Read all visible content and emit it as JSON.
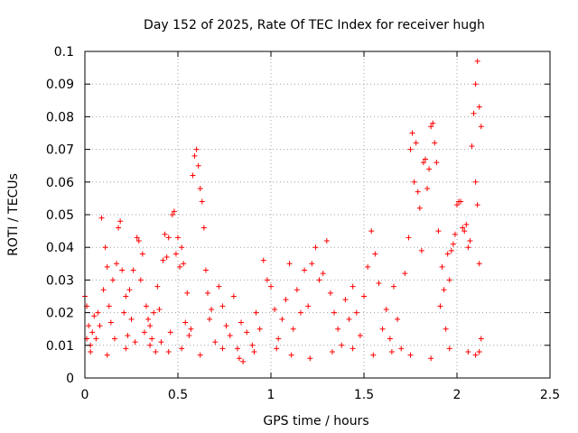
{
  "chart_data": {
    "type": "scatter",
    "title": "Day 152 of 2025, Rate Of TEC Index for receiver hugh",
    "xlabel": "GPS time / hours",
    "ylabel": "ROTI / TECUs",
    "xlim": [
      0,
      2.5
    ],
    "ylim": [
      0,
      0.1
    ],
    "x_ticks": [
      0,
      0.5,
      1,
      1.5,
      2,
      2.5
    ],
    "x_tick_labels": [
      "0",
      "0.5",
      "1",
      "1.5",
      "2",
      "2.5"
    ],
    "y_ticks": [
      0,
      0.01,
      0.02,
      0.03,
      0.04,
      0.05,
      0.06,
      0.07,
      0.08,
      0.09,
      0.1
    ],
    "y_tick_labels": [
      "0",
      "0.01",
      "0.02",
      "0.03",
      "0.04",
      "0.05",
      "0.06",
      "0.07",
      "0.08",
      "0.09",
      "0.1"
    ],
    "grid": true,
    "marker": "+",
    "color": "#ff0000",
    "series": [
      {
        "points": [
          [
            0.0,
            0.025
          ],
          [
            0.01,
            0.022
          ],
          [
            0.01,
            0.012
          ],
          [
            0.02,
            0.016
          ],
          [
            0.03,
            0.01
          ],
          [
            0.04,
            0.014
          ],
          [
            0.05,
            0.019
          ],
          [
            0.06,
            0.012
          ],
          [
            0.07,
            0.02
          ],
          [
            0.08,
            0.016
          ],
          [
            0.09,
            0.049
          ],
          [
            0.1,
            0.027
          ],
          [
            0.11,
            0.04
          ],
          [
            0.12,
            0.034
          ],
          [
            0.13,
            0.022
          ],
          [
            0.14,
            0.017
          ],
          [
            0.15,
            0.03
          ],
          [
            0.16,
            0.012
          ],
          [
            0.17,
            0.035
          ],
          [
            0.18,
            0.046
          ],
          [
            0.19,
            0.048
          ],
          [
            0.2,
            0.033
          ],
          [
            0.21,
            0.02
          ],
          [
            0.22,
            0.025
          ],
          [
            0.23,
            0.013
          ],
          [
            0.24,
            0.027
          ],
          [
            0.25,
            0.018
          ],
          [
            0.26,
            0.033
          ],
          [
            0.27,
            0.011
          ],
          [
            0.28,
            0.043
          ],
          [
            0.29,
            0.042
          ],
          [
            0.3,
            0.03
          ],
          [
            0.31,
            0.038
          ],
          [
            0.32,
            0.014
          ],
          [
            0.33,
            0.022
          ],
          [
            0.34,
            0.018
          ],
          [
            0.35,
            0.016
          ],
          [
            0.36,
            0.012
          ],
          [
            0.37,
            0.02
          ],
          [
            0.38,
            0.008
          ],
          [
            0.39,
            0.028
          ],
          [
            0.4,
            0.021
          ],
          [
            0.41,
            0.011
          ],
          [
            0.42,
            0.036
          ],
          [
            0.43,
            0.044
          ],
          [
            0.44,
            0.037
          ],
          [
            0.45,
            0.043
          ],
          [
            0.46,
            0.014
          ],
          [
            0.47,
            0.05
          ],
          [
            0.48,
            0.051
          ],
          [
            0.49,
            0.038
          ],
          [
            0.5,
            0.043
          ],
          [
            0.51,
            0.034
          ],
          [
            0.52,
            0.04
          ],
          [
            0.53,
            0.035
          ],
          [
            0.54,
            0.017
          ],
          [
            0.55,
            0.026
          ],
          [
            0.56,
            0.013
          ],
          [
            0.57,
            0.015
          ],
          [
            0.58,
            0.062
          ],
          [
            0.59,
            0.068
          ],
          [
            0.6,
            0.07
          ],
          [
            0.61,
            0.065
          ],
          [
            0.62,
            0.058
          ],
          [
            0.63,
            0.054
          ],
          [
            0.64,
            0.046
          ],
          [
            0.65,
            0.033
          ],
          [
            0.66,
            0.026
          ],
          [
            0.67,
            0.018
          ],
          [
            0.68,
            0.021
          ],
          [
            0.7,
            0.011
          ],
          [
            0.72,
            0.028
          ],
          [
            0.74,
            0.022
          ],
          [
            0.76,
            0.016
          ],
          [
            0.78,
            0.013
          ],
          [
            0.8,
            0.025
          ],
          [
            0.82,
            0.009
          ],
          [
            0.84,
            0.017
          ],
          [
            0.85,
            0.005
          ],
          [
            0.87,
            0.014
          ],
          [
            0.9,
            0.01
          ],
          [
            0.92,
            0.02
          ],
          [
            0.94,
            0.015
          ],
          [
            0.96,
            0.036
          ],
          [
            0.98,
            0.03
          ],
          [
            1.0,
            0.028
          ],
          [
            1.02,
            0.021
          ],
          [
            1.04,
            0.012
          ],
          [
            1.06,
            0.018
          ],
          [
            1.08,
            0.024
          ],
          [
            1.1,
            0.035
          ],
          [
            1.12,
            0.015
          ],
          [
            1.14,
            0.027
          ],
          [
            1.16,
            0.02
          ],
          [
            1.18,
            0.033
          ],
          [
            1.2,
            0.022
          ],
          [
            1.22,
            0.035
          ],
          [
            1.24,
            0.04
          ],
          [
            1.26,
            0.03
          ],
          [
            1.28,
            0.032
          ],
          [
            1.3,
            0.042
          ],
          [
            1.32,
            0.026
          ],
          [
            1.34,
            0.02
          ],
          [
            1.36,
            0.015
          ],
          [
            1.38,
            0.01
          ],
          [
            1.4,
            0.024
          ],
          [
            1.42,
            0.018
          ],
          [
            1.44,
            0.028
          ],
          [
            1.46,
            0.02
          ],
          [
            1.48,
            0.013
          ],
          [
            1.5,
            0.025
          ],
          [
            1.52,
            0.034
          ],
          [
            1.54,
            0.045
          ],
          [
            1.56,
            0.038
          ],
          [
            1.58,
            0.029
          ],
          [
            1.6,
            0.015
          ],
          [
            1.62,
            0.021
          ],
          [
            1.64,
            0.012
          ],
          [
            1.66,
            0.028
          ],
          [
            1.68,
            0.018
          ],
          [
            1.7,
            0.009
          ],
          [
            1.72,
            0.032
          ],
          [
            1.74,
            0.043
          ],
          [
            1.75,
            0.07
          ],
          [
            1.76,
            0.075
          ],
          [
            1.77,
            0.06
          ],
          [
            1.78,
            0.072
          ],
          [
            1.79,
            0.057
          ],
          [
            1.8,
            0.052
          ],
          [
            1.81,
            0.039
          ],
          [
            1.82,
            0.066
          ],
          [
            1.83,
            0.067
          ],
          [
            1.84,
            0.058
          ],
          [
            1.85,
            0.064
          ],
          [
            1.86,
            0.077
          ],
          [
            1.87,
            0.078
          ],
          [
            1.88,
            0.072
          ],
          [
            1.89,
            0.066
          ],
          [
            1.9,
            0.045
          ],
          [
            1.91,
            0.022
          ],
          [
            1.92,
            0.034
          ],
          [
            1.93,
            0.027
          ],
          [
            1.94,
            0.015
          ],
          [
            1.95,
            0.038
          ],
          [
            1.96,
            0.03
          ],
          [
            1.97,
            0.039
          ],
          [
            1.98,
            0.041
          ],
          [
            1.99,
            0.044
          ],
          [
            2.0,
            0.053
          ],
          [
            2.01,
            0.054
          ],
          [
            2.02,
            0.054
          ],
          [
            2.03,
            0.046
          ],
          [
            2.04,
            0.045
          ],
          [
            2.05,
            0.047
          ],
          [
            2.06,
            0.04
          ],
          [
            2.07,
            0.042
          ],
          [
            2.08,
            0.071
          ],
          [
            2.09,
            0.081
          ],
          [
            2.1,
            0.09
          ],
          [
            2.11,
            0.097
          ],
          [
            2.12,
            0.083
          ],
          [
            2.13,
            0.077
          ],
          [
            2.1,
            0.06
          ],
          [
            2.11,
            0.053
          ],
          [
            2.12,
            0.035
          ],
          [
            2.13,
            0.012
          ],
          [
            2.1,
            0.007
          ],
          [
            2.12,
            0.008
          ],
          [
            0.03,
            0.008
          ],
          [
            0.12,
            0.007
          ],
          [
            0.22,
            0.009
          ],
          [
            0.35,
            0.01
          ],
          [
            0.45,
            0.008
          ],
          [
            0.52,
            0.009
          ],
          [
            0.62,
            0.007
          ],
          [
            0.74,
            0.009
          ],
          [
            0.83,
            0.006
          ],
          [
            0.91,
            0.008
          ],
          [
            1.03,
            0.009
          ],
          [
            1.11,
            0.007
          ],
          [
            1.21,
            0.006
          ],
          [
            1.33,
            0.008
          ],
          [
            1.44,
            0.009
          ],
          [
            1.55,
            0.007
          ],
          [
            1.65,
            0.008
          ],
          [
            1.75,
            0.007
          ],
          [
            1.86,
            0.006
          ],
          [
            1.96,
            0.009
          ],
          [
            2.06,
            0.008
          ]
        ]
      }
    ]
  }
}
